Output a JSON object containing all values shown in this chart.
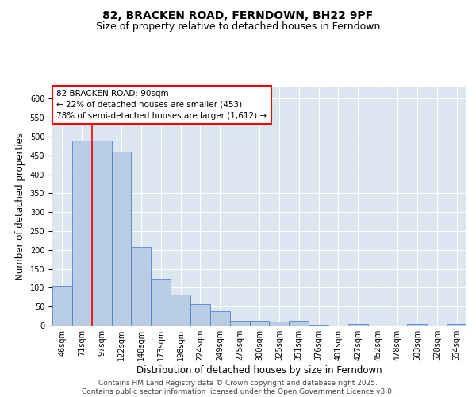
{
  "title": "82, BRACKEN ROAD, FERNDOWN, BH22 9PF",
  "subtitle": "Size of property relative to detached houses in Ferndown",
  "xlabel": "Distribution of detached houses by size in Ferndown",
  "ylabel": "Number of detached properties",
  "categories": [
    "46sqm",
    "71sqm",
    "97sqm",
    "122sqm",
    "148sqm",
    "173sqm",
    "198sqm",
    "224sqm",
    "249sqm",
    "275sqm",
    "300sqm",
    "325sqm",
    "351sqm",
    "376sqm",
    "401sqm",
    "427sqm",
    "452sqm",
    "478sqm",
    "503sqm",
    "528sqm",
    "554sqm"
  ],
  "values": [
    105,
    490,
    490,
    460,
    208,
    122,
    82,
    57,
    38,
    13,
    13,
    10,
    12,
    2,
    0,
    5,
    0,
    0,
    5,
    0,
    5
  ],
  "bar_color": "#b8cce4",
  "bar_edge_color": "#4472c4",
  "background_color": "#dce6f1",
  "grid_color": "#ffffff",
  "annotation_line1": "82 BRACKEN ROAD: 90sqm",
  "annotation_line2": "← 22% of detached houses are smaller (453)",
  "annotation_line3": "78% of semi-detached houses are larger (1,612) →",
  "red_line_color": "#ff0000",
  "annotation_box_edge_color": "#ff0000",
  "footer_text": "Contains HM Land Registry data © Crown copyright and database right 2025.\nContains public sector information licensed under the Open Government Licence v3.0.",
  "ylim": [
    0,
    630
  ],
  "yticks": [
    0,
    50,
    100,
    150,
    200,
    250,
    300,
    350,
    400,
    450,
    500,
    550,
    600
  ],
  "title_fontsize": 10,
  "subtitle_fontsize": 9,
  "axis_label_fontsize": 8.5,
  "tick_fontsize": 7,
  "annotation_fontsize": 7.5,
  "footer_fontsize": 6.5
}
